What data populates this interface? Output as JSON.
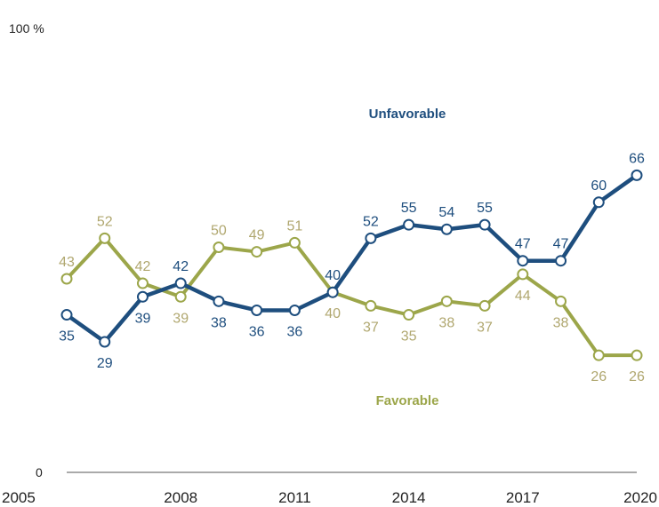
{
  "chart_data": {
    "type": "line",
    "x": [
      2005,
      2006,
      2007,
      2008,
      2009,
      2010,
      2011,
      2012,
      2013,
      2014,
      2015,
      2016,
      2017,
      2018,
      2019,
      2020
    ],
    "x_tick_labels": [
      "2005",
      "2008",
      "2011",
      "2014",
      "2017",
      "2020"
    ],
    "x_tick_values": [
      2005,
      2008,
      2011,
      2014,
      2017,
      2020
    ],
    "ylim": [
      0,
      100
    ],
    "y_max_label": "100 %",
    "y_min_label": "0",
    "grid": false,
    "legend": "inline labels",
    "series": [
      {
        "name": "Unfavorable",
        "color": "#1e4e7e",
        "values": [
          35,
          29,
          39,
          42,
          38,
          36,
          36,
          40,
          52,
          55,
          54,
          55,
          47,
          47,
          60,
          66
        ],
        "labels": [
          "35",
          "29",
          "39",
          "42",
          "38",
          "36",
          "36",
          "40",
          "52",
          "55",
          "54",
          "55",
          "47",
          "47",
          "60",
          "66"
        ]
      },
      {
        "name": "Favorable",
        "color": "#9ca64a",
        "label_color": "#b0a76f",
        "values": [
          43,
          52,
          42,
          39,
          50,
          49,
          51,
          40,
          37,
          35,
          38,
          37,
          44,
          38,
          26,
          26
        ],
        "labels": [
          "43",
          "52",
          "42",
          "39",
          "50",
          "49",
          "51",
          "40",
          "37",
          "35",
          "38",
          "37",
          "44",
          "38",
          "26",
          "26"
        ]
      }
    ]
  }
}
